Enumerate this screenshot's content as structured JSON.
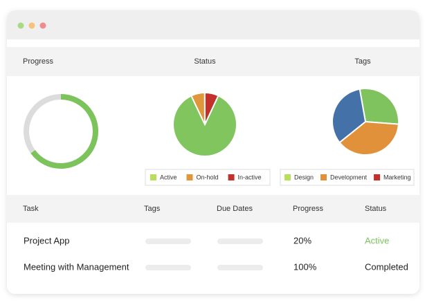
{
  "progress": {
    "title": "Progress",
    "type": "donut",
    "value": 65,
    "max": 100,
    "color": "#7cc35c",
    "track_color": "#dcdcdc"
  },
  "status": {
    "title": "Status",
    "type": "pie",
    "categories": [
      "Active",
      "On-hold",
      "In-active"
    ],
    "values": [
      86,
      7,
      7
    ],
    "colors": [
      "#80c55e",
      "#e0963a",
      "#c2312c"
    ],
    "legend_colors": [
      "#b8df5c",
      "#e0963a",
      "#c2312c"
    ],
    "start_angle": 25
  },
  "tags": {
    "title": "Tags",
    "type": "pie",
    "categories": [
      "Design",
      "Development",
      "Marketing"
    ],
    "values": [
      29,
      38,
      33
    ],
    "colors": [
      "#7ec35e",
      "#e0913a",
      "#4472a8"
    ],
    "legend_colors": [
      "#b8df5c",
      "#e0913a",
      "#c2312c"
    ],
    "start_angle": -10
  },
  "table": {
    "columns": [
      "Task",
      "Tags",
      "Due Dates",
      "Progress",
      "Status"
    ],
    "rows": [
      {
        "task": "Project App",
        "progress": "20%",
        "status": "Active",
        "status_color": "#7cc35c"
      },
      {
        "task": "Meeting with Management",
        "progress": "100%",
        "status": "Completed",
        "status_color": "#222222"
      }
    ]
  }
}
